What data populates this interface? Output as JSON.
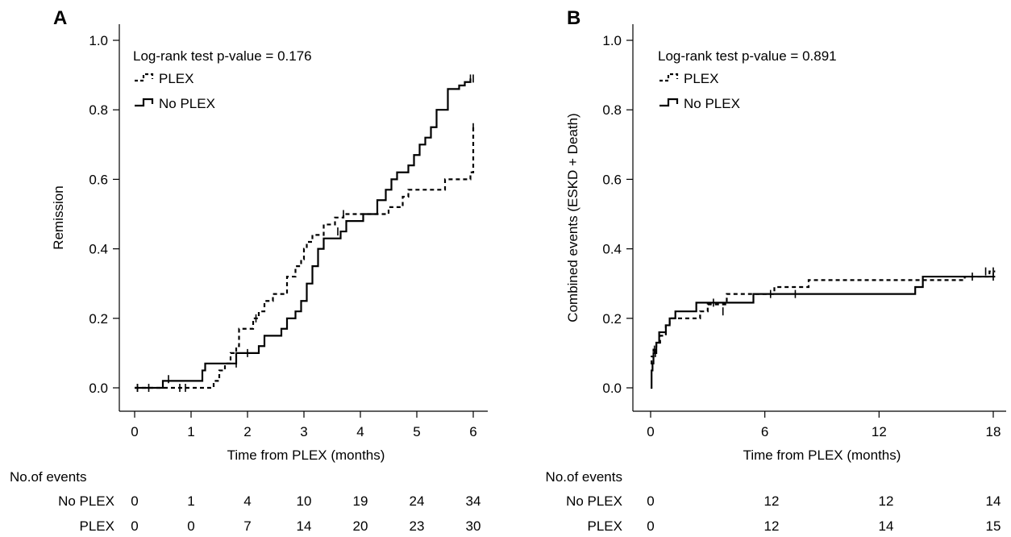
{
  "chart_data": [
    {
      "panel": "A",
      "type": "line",
      "step": true,
      "annotation": "Log-rank test p-value = 0.176",
      "xlabel": "Time from PLEX (months)",
      "ylabel": "Remission",
      "xlim": [
        -0.3,
        6.3
      ],
      "ylim": [
        -0.07,
        1.07
      ],
      "xticks": [
        0,
        1,
        2,
        3,
        4,
        5,
        6
      ],
      "yticks": [
        "0.0",
        "0.2",
        "0.4",
        "0.6",
        "0.8",
        "1.0"
      ],
      "legend_position": "top-left",
      "series": [
        {
          "name": "PLEX",
          "style": "dashed",
          "x": [
            0.0,
            1.4,
            1.5,
            1.6,
            1.7,
            1.8,
            1.85,
            2.1,
            2.2,
            2.3,
            2.45,
            2.7,
            2.85,
            2.95,
            3.0,
            3.05,
            3.15,
            3.35,
            3.55,
            3.7,
            4.5,
            4.75,
            4.85,
            5.0,
            5.05,
            5.5,
            5.95,
            6.0
          ],
          "y": [
            0.0,
            0.02,
            0.05,
            0.07,
            0.1,
            0.12,
            0.17,
            0.2,
            0.22,
            0.25,
            0.27,
            0.32,
            0.35,
            0.37,
            0.4,
            0.42,
            0.44,
            0.47,
            0.49,
            0.5,
            0.52,
            0.55,
            0.57,
            0.57,
            0.57,
            0.6,
            0.62,
            0.75
          ],
          "censored": [
            [
              0.05,
              0.0
            ],
            [
              0.8,
              0.0
            ],
            [
              0.9,
              0.0
            ],
            [
              1.8,
              0.07
            ],
            [
              2.15,
              0.2
            ],
            [
              3.7,
              0.5
            ],
            [
              6.0,
              0.75
            ]
          ]
        },
        {
          "name": "No PLEX",
          "style": "solid",
          "x": [
            0.0,
            0.5,
            1.2,
            1.25,
            1.8,
            1.95,
            2.2,
            2.3,
            2.6,
            2.7,
            2.85,
            2.95,
            3.05,
            3.15,
            3.25,
            3.35,
            3.65,
            3.75,
            4.05,
            4.3,
            4.45,
            4.55,
            4.65,
            4.85,
            4.95,
            5.05,
            5.15,
            5.25,
            5.35,
            5.55,
            5.75,
            5.85,
            5.95
          ],
          "y": [
            0.0,
            0.02,
            0.05,
            0.07,
            0.1,
            0.1,
            0.12,
            0.15,
            0.17,
            0.2,
            0.22,
            0.25,
            0.3,
            0.35,
            0.4,
            0.43,
            0.45,
            0.48,
            0.5,
            0.54,
            0.57,
            0.6,
            0.62,
            0.64,
            0.67,
            0.7,
            0.72,
            0.75,
            0.8,
            0.86,
            0.87,
            0.88,
            0.89
          ],
          "censored": [
            [
              0.05,
              0.0
            ],
            [
              0.25,
              0.0
            ],
            [
              0.6,
              0.025
            ],
            [
              2.0,
              0.1
            ],
            [
              3.6,
              0.45
            ],
            [
              5.95,
              0.89
            ],
            [
              6.0,
              0.89
            ]
          ]
        }
      ],
      "risk_table": {
        "header": "No.of events",
        "rows": [
          {
            "label": "No PLEX",
            "values": [
              "0",
              "1",
              "4",
              "10",
              "19",
              "24",
              "34"
            ]
          },
          {
            "label": "PLEX",
            "values": [
              "0",
              "0",
              "7",
              "14",
              "20",
              "23",
              "30"
            ]
          }
        ]
      }
    },
    {
      "panel": "B",
      "type": "line",
      "step": true,
      "annotation": "Log-rank test p-value = 0.891",
      "xlabel": "Time from PLEX (months)",
      "ylabel": "Combined events (ESKD + Death)",
      "xlim": [
        -0.9,
        18.9
      ],
      "ylim": [
        -0.07,
        1.07
      ],
      "xticks": [
        0,
        6,
        12,
        18
      ],
      "yticks": [
        "0.0",
        "0.2",
        "0.4",
        "0.6",
        "0.8",
        "1.0"
      ],
      "legend_position": "top-left",
      "series": [
        {
          "name": "PLEX",
          "style": "dashed",
          "x": [
            0.0,
            0.05,
            0.15,
            0.3,
            0.5,
            0.8,
            1.0,
            2.2,
            2.6,
            3.0,
            4.0,
            6.5,
            7.6,
            8.3,
            13.8,
            16.5,
            17.8,
            18.1
          ],
          "y": [
            0.07,
            0.09,
            0.11,
            0.13,
            0.15,
            0.18,
            0.2,
            0.2,
            0.22,
            0.24,
            0.27,
            0.29,
            0.29,
            0.31,
            0.31,
            0.32,
            0.335,
            0.335
          ],
          "censored": [
            [
              0.2,
              0.11
            ],
            [
              3.8,
              0.22
            ],
            [
              17.6,
              0.335
            ],
            [
              18.0,
              0.335
            ]
          ]
        },
        {
          "name": "No PLEX",
          "style": "solid",
          "x": [
            0.0,
            0.05,
            0.1,
            0.15,
            0.3,
            0.45,
            0.6,
            0.8,
            1.0,
            1.3,
            2.4,
            5.4,
            13.9,
            14.3,
            16.9,
            18.1
          ],
          "y": [
            0.0,
            0.05,
            0.07,
            0.1,
            0.13,
            0.16,
            0.16,
            0.18,
            0.2,
            0.22,
            0.245,
            0.27,
            0.29,
            0.32,
            0.32,
            0.32
          ],
          "censored": [
            [
              0.25,
              0.1
            ],
            [
              3.3,
              0.245
            ],
            [
              6.3,
              0.27
            ],
            [
              7.6,
              0.27
            ],
            [
              16.9,
              0.32
            ],
            [
              18.0,
              0.32
            ]
          ]
        }
      ],
      "risk_table": {
        "header": "No.of events",
        "rows": [
          {
            "label": "No PLEX",
            "values": [
              "0",
              "12",
              "12",
              "14"
            ]
          },
          {
            "label": "PLEX",
            "values": [
              "0",
              "12",
              "14",
              "15"
            ]
          }
        ]
      }
    }
  ]
}
